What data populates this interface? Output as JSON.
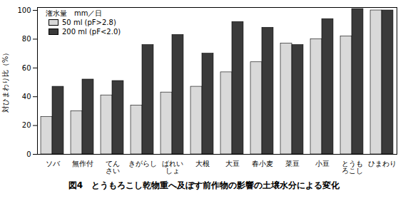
{
  "chart_data": {
    "type": "bar",
    "title": "図4　とうもろこし乾物重へ及ぼす前作物の影響の土壌水分による変化",
    "y_label": "対ひまわり比（%）",
    "legend_title": "潅水量　mm／日",
    "categories": [
      "ソバ",
      "無作付",
      "てん\nさい",
      "きがらし",
      "ばれい\nしょ",
      "大根",
      "大豆",
      "春小麦",
      "菜豆",
      "小豆",
      "とうも\nろこし",
      "ひまわり"
    ],
    "series": [
      {
        "name": "50 ml (pF>2.8)",
        "color": "#d9d9d9",
        "values": [
          26,
          30,
          41,
          34,
          43,
          47,
          57,
          64,
          77,
          80,
          82,
          100
        ]
      },
      {
        "name": "200 ml (pF<2.0)",
        "color": "#3a3a3a",
        "values": [
          47,
          52,
          51,
          76,
          83,
          70,
          92,
          88,
          76,
          94,
          101,
          100
        ]
      }
    ],
    "ylim": [
      0,
      102
    ],
    "yticks": [
      0,
      20,
      40,
      60,
      80,
      100
    ],
    "grid": false,
    "legend": "top-left"
  }
}
